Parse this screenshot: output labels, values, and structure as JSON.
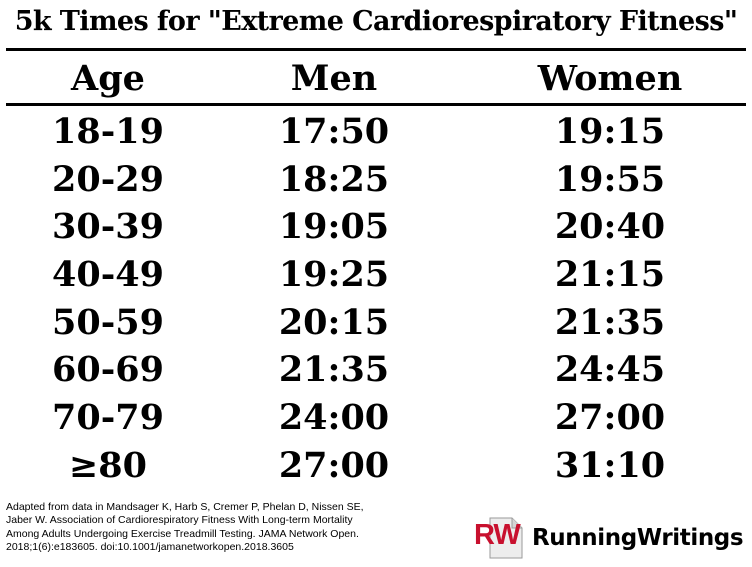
{
  "title": "5k Times for \"Extreme Cardiorespiratory Fitness\"",
  "table": {
    "headers": [
      "Age",
      "Men",
      "Women"
    ],
    "rows": [
      {
        "age": "18-19",
        "men": "17:50",
        "women": "19:15"
      },
      {
        "age": "20-29",
        "men": "18:25",
        "women": "19:55"
      },
      {
        "age": "30-39",
        "men": "19:05",
        "women": "20:40"
      },
      {
        "age": "40-49",
        "men": "19:25",
        "women": "21:15"
      },
      {
        "age": "50-59",
        "men": "20:15",
        "women": "21:35"
      },
      {
        "age": "60-69",
        "men": "21:35",
        "women": "24:45"
      },
      {
        "age": "70-79",
        "men": "24:00",
        "women": "27:00"
      },
      {
        "age": "≥80",
        "men": "27:00",
        "women": "31:10"
      }
    ]
  },
  "citation": {
    "lines": [
      "Adapted from data in Mandsager K, Harb S, Cremer P, Phelan D, Nissen SE,",
      "Jaber W. Association of Cardiorespiratory Fitness With Long-term Mortality",
      "Among Adults Undergoing Exercise Treadmill Testing. JAMA Network Open.",
      "2018;1(6):e183605. doi:10.1001/jamanetworkopen.2018.3605"
    ]
  },
  "brand": {
    "logo_text": "RW",
    "name": "RunningWritings",
    "logo_color": "#c8102e"
  }
}
